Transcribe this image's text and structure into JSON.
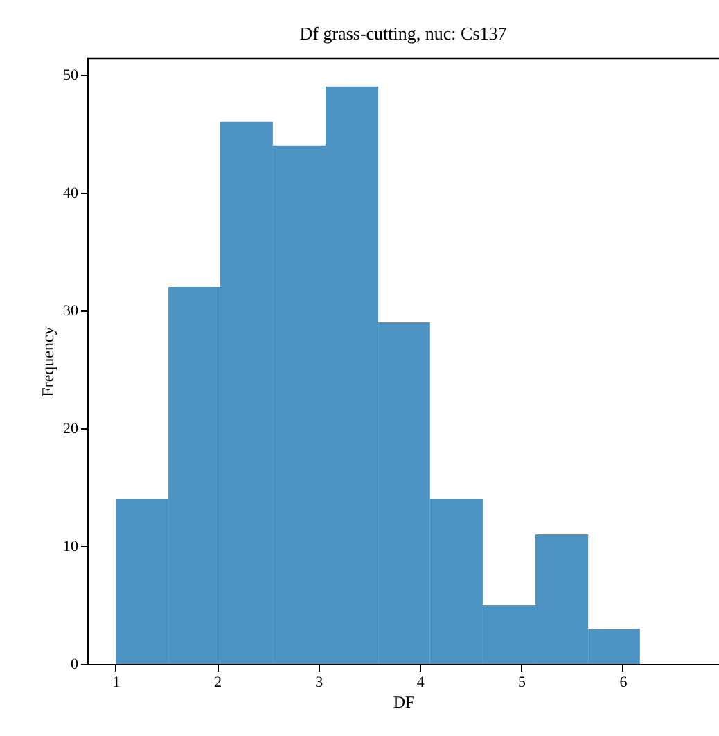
{
  "chart_data": {
    "type": "histogram",
    "title": "Df grass-cutting, nuc: Cs137",
    "xlabel": "DF",
    "ylabel": "Frequency",
    "bins": [
      1.0,
      1.52,
      2.03,
      2.55,
      3.07,
      3.59,
      4.1,
      4.62,
      5.14,
      5.66,
      6.17
    ],
    "values": [
      14,
      32,
      46,
      44,
      49,
      29,
      14,
      5,
      11,
      3
    ],
    "color": "#4c93c3",
    "xlim": [
      0.72,
      6.95
    ],
    "xticks": [
      1,
      2,
      3,
      4,
      5,
      6
    ],
    "ylim": [
      0,
      51.4
    ],
    "yticks": [
      0,
      10,
      20,
      30,
      40,
      50
    ],
    "grid": false
  }
}
